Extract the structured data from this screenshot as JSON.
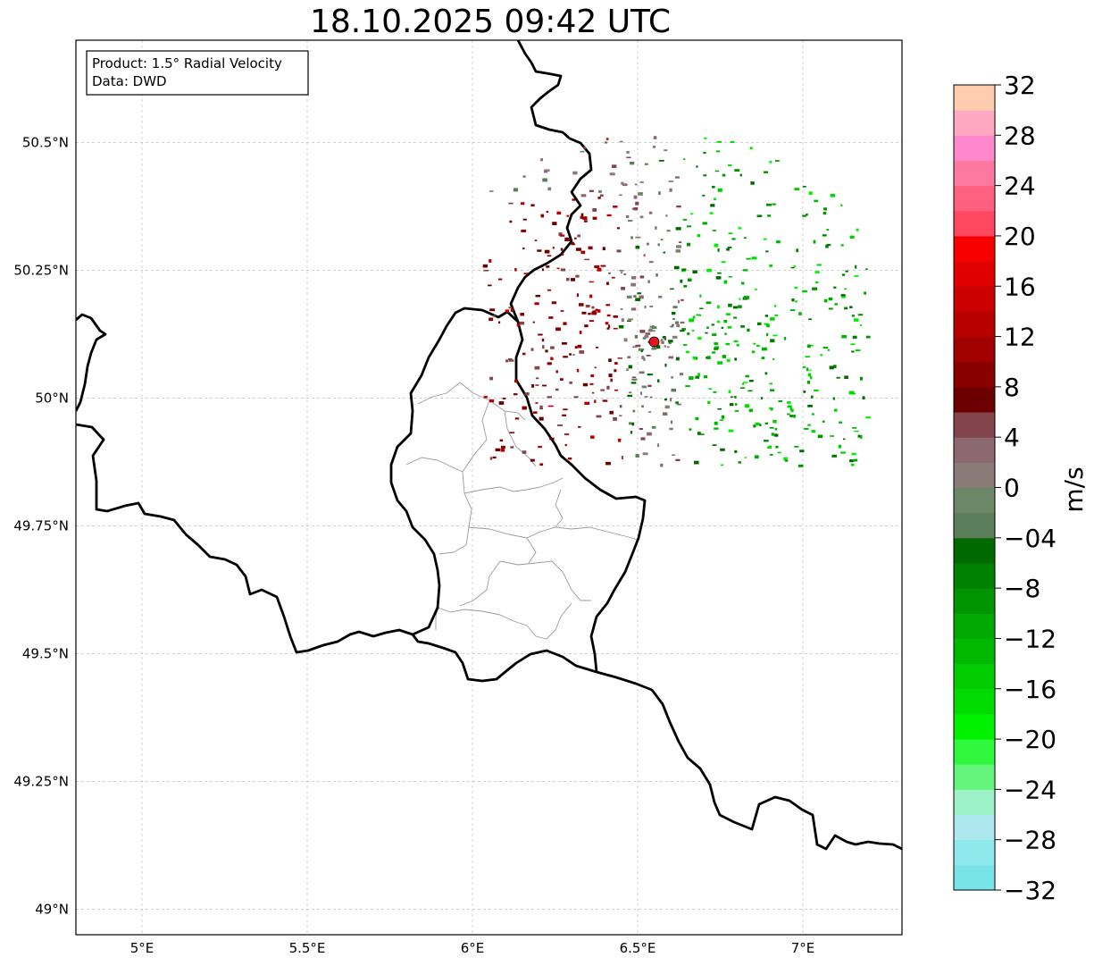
{
  "title": "18.10.2025 09:42 UTC",
  "info_box": {
    "product": "Product: 1.5° Radial Velocity",
    "source": "Data: DWD"
  },
  "map": {
    "lon_range": [
      4.8,
      7.3
    ],
    "lat_range": [
      48.95,
      50.7
    ],
    "lon_ticks": [
      {
        "value": 5.0,
        "label": "5°E"
      },
      {
        "value": 5.5,
        "label": "5.5°E"
      },
      {
        "value": 6.0,
        "label": "6°E"
      },
      {
        "value": 6.5,
        "label": "6.5°E"
      },
      {
        "value": 7.0,
        "label": "7°E"
      }
    ],
    "lat_ticks": [
      {
        "value": 49.0,
        "label": "49°N"
      },
      {
        "value": 49.25,
        "label": "49.25°N"
      },
      {
        "value": 49.5,
        "label": "49.5°N"
      },
      {
        "value": 49.75,
        "label": "49.75°N"
      },
      {
        "value": 50.0,
        "label": "50°N"
      },
      {
        "value": 50.25,
        "label": "50.25°N"
      },
      {
        "value": 50.5,
        "label": "50.5°N"
      }
    ],
    "radar_site": {
      "name": "Radar site",
      "lon": 6.55,
      "lat": 50.11,
      "color": "#e8141c"
    }
  },
  "colorbar": {
    "unit": "m/s",
    "min": -32,
    "max": 32,
    "step": 2,
    "tick_labels": [
      "32",
      "28",
      "24",
      "20",
      "16",
      "12",
      "8",
      "4",
      "0",
      "−04",
      "−8",
      "−12",
      "−16",
      "−20",
      "−24",
      "−28",
      "−32"
    ],
    "colors": [
      "#78e4e8",
      "#8ee8ec",
      "#ace8ee",
      "#9ef2c8",
      "#66f57c",
      "#30f83c",
      "#00f200",
      "#00dc00",
      "#00cc00",
      "#00b800",
      "#00a800",
      "#009400",
      "#008000",
      "#006a00",
      "#5c7e5a",
      "#6a8868",
      "#8a7a78",
      "#8c6870",
      "#84444c",
      "#6c0000",
      "#8a0000",
      "#a00000",
      "#b80000",
      "#cc0000",
      "#e00000",
      "#f60000",
      "#ff4860",
      "#ff6080",
      "#ff78a0",
      "#ff88cc",
      "#ffa8c4",
      "#ffccb0"
    ]
  }
}
